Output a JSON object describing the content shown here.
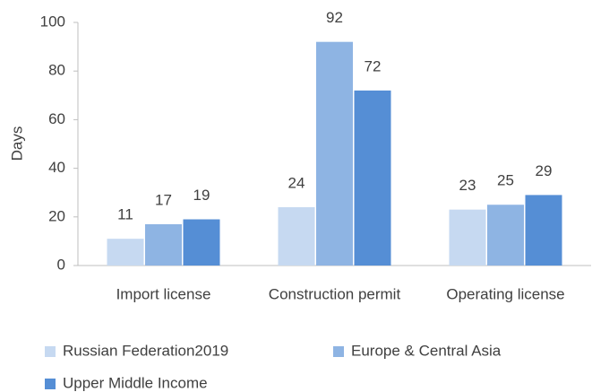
{
  "chart_data": {
    "type": "bar",
    "y_label": "Days",
    "categories": [
      "Import license",
      "Construction permit",
      "Operating license"
    ],
    "series": [
      {
        "name": "Russian Federation2019",
        "color": "#c6d9f1",
        "values": [
          11,
          24,
          23
        ]
      },
      {
        "name": "Europe & Central Asia",
        "color": "#8eb4e3",
        "values": [
          17,
          92,
          25
        ]
      },
      {
        "name": "Upper Middle Income",
        "color": "#558ed5",
        "values": [
          19,
          72,
          29
        ]
      }
    ],
    "ylim": [
      0,
      100
    ],
    "yticks": [
      0,
      20,
      40,
      60,
      80,
      100
    ],
    "grid": false,
    "legend": "bottom"
  }
}
